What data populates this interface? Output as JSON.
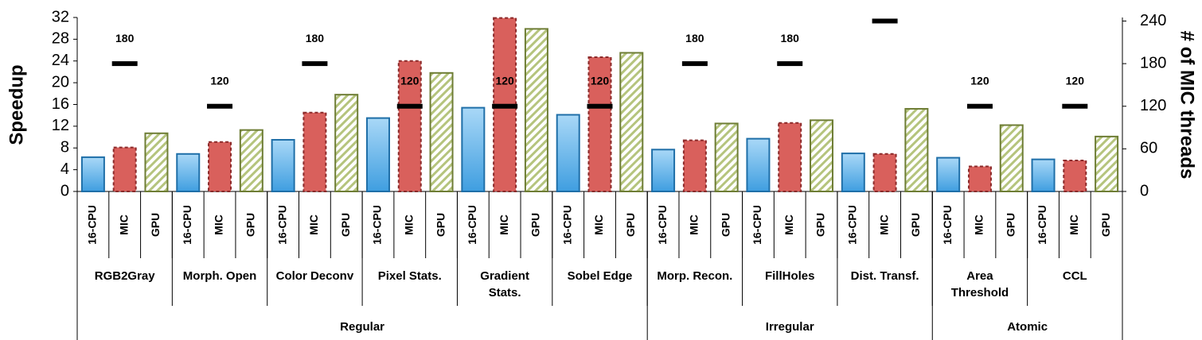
{
  "chart_data": {
    "type": "bar",
    "ylabel": "Speedup",
    "y2label": "# of MIC threads",
    "categories": [
      "RGB2Gray",
      "Morph. Open",
      "Color Deconv",
      "Pixel Stats.",
      "Gradient Stats.",
      "Sobel Edge",
      "Morp. Recon.",
      "FillHoles",
      "Dist. Transf.",
      "Area Threshold",
      "CCL"
    ],
    "supergroups": [
      {
        "label": "Regular",
        "span": 6
      },
      {
        "label": "Irregular",
        "span": 3
      },
      {
        "label": "Atomic",
        "span": 2
      }
    ],
    "series": [
      {
        "name": "16-CPU",
        "color": "#6cb8ea",
        "values": [
          6.3,
          6.9,
          9.5,
          13.5,
          15.4,
          14.1,
          7.7,
          9.7,
          7.0,
          6.2,
          5.9
        ]
      },
      {
        "name": "MIC",
        "color": "#d9605c",
        "values": [
          8.1,
          9.1,
          14.5,
          24,
          31.9,
          24.7,
          9.4,
          12.6,
          6.9,
          4.6,
          5.7
        ]
      },
      {
        "name": "GPU",
        "color": "#8a9a4a",
        "values": [
          10.7,
          11.3,
          17.8,
          21.8,
          29.9,
          25.5,
          12.5,
          13.1,
          15.2,
          12.2,
          10.1
        ]
      }
    ],
    "mic_threads": {
      "axis": "y2",
      "color": "#000000",
      "values": [
        180,
        120,
        180,
        120,
        120,
        120,
        180,
        180,
        240,
        120,
        120
      ]
    },
    "ylim": [
      0,
      32
    ],
    "yticks": [
      0,
      4,
      8,
      12,
      16,
      20,
      24,
      28,
      32
    ],
    "y2lim": [
      0,
      245
    ],
    "y2ticks": [
      0,
      60,
      120,
      180,
      240
    ]
  }
}
